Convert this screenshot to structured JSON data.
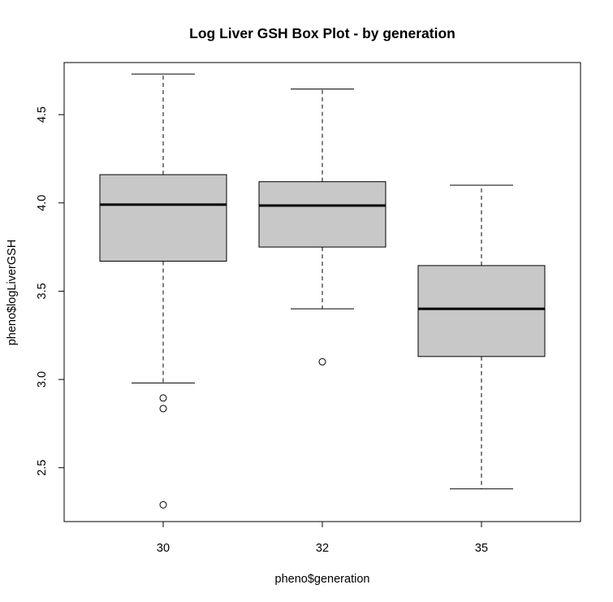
{
  "chart_data": {
    "type": "boxplot",
    "title": "Log Liver GSH Box Plot - by generation",
    "xlabel": "pheno$generation",
    "ylabel": "pheno$logLiverGSH",
    "categories": [
      "30",
      "32",
      "35"
    ],
    "yticks": [
      "2.5",
      "3.0",
      "3.5",
      "4.0",
      "4.5"
    ],
    "ylim": [
      2.195,
      4.795
    ],
    "box_color": "#c8c8c8",
    "boxes": [
      {
        "category": "30",
        "whisker_low": 2.98,
        "q1": 3.67,
        "median": 3.99,
        "q3": 4.16,
        "whisker_high": 4.73,
        "outliers": [
          2.29,
          2.835,
          2.895
        ]
      },
      {
        "category": "32",
        "whisker_low": 3.4,
        "q1": 3.75,
        "median": 3.985,
        "q3": 4.12,
        "whisker_high": 4.645,
        "outliers": [
          3.1
        ]
      },
      {
        "category": "35",
        "whisker_low": 2.38,
        "q1": 3.13,
        "median": 3.4,
        "q3": 3.645,
        "whisker_high": 4.1,
        "outliers": []
      }
    ]
  }
}
